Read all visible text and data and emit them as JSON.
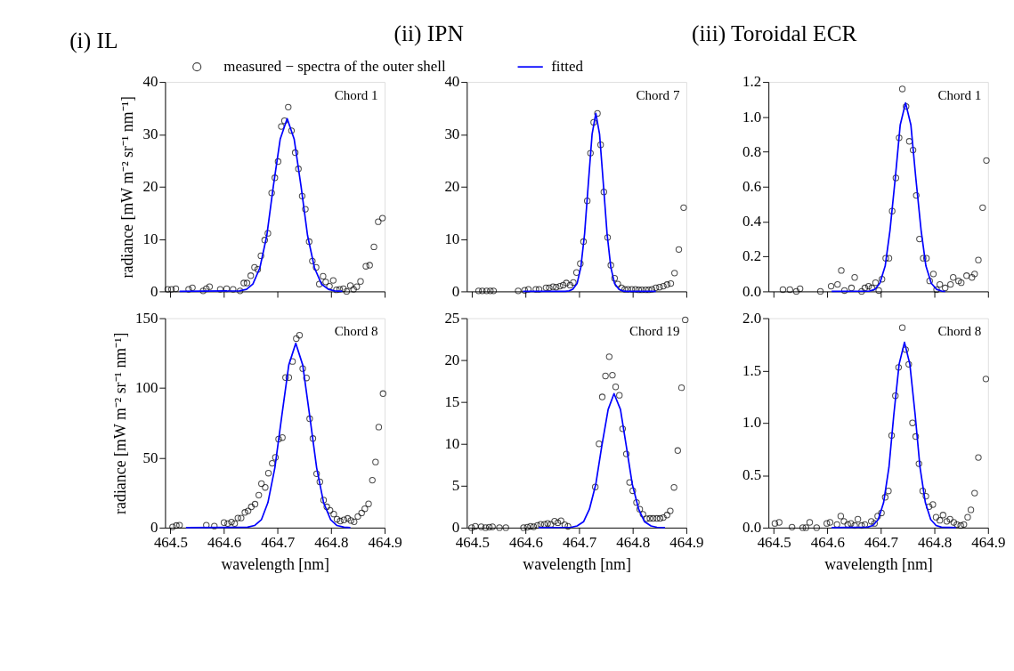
{
  "chart_data": [
    {
      "type": "scatter",
      "title": "(i) IL",
      "ylabel": "radiance [mW m⁻² sr⁻¹ nm⁻¹]",
      "annotations": [
        "Chord 1"
      ],
      "xlim": [
        464.49,
        464.9
      ],
      "xticks": [
        464.5,
        464.6,
        464.7,
        464.8,
        464.9
      ],
      "ylim": [
        0,
        40
      ],
      "yticks": [
        0,
        10,
        20,
        30,
        40
      ],
      "tick_labels": "y",
      "legend": "top",
      "grid": false,
      "series": [
        {
          "name": "measured − spectra of the outer shell",
          "marker": "circle",
          "color": "#000000",
          "x": [
            464.495,
            464.502,
            464.51,
            464.534,
            464.541,
            464.561,
            464.567,
            464.573,
            464.593,
            464.605,
            464.617,
            464.63,
            464.637,
            464.643,
            464.65,
            464.657,
            464.663,
            464.669,
            464.676,
            464.682,
            464.689,
            464.695,
            464.701,
            464.707,
            464.713,
            464.72,
            464.726,
            464.733,
            464.739,
            464.746,
            464.752,
            464.759,
            464.765,
            464.772,
            464.778,
            464.785,
            464.79,
            464.797,
            464.804,
            464.81,
            464.816,
            464.823,
            464.829,
            464.836,
            464.842,
            464.848,
            464.855,
            464.865,
            464.872,
            464.88,
            464.888,
            464.896
          ],
          "values": [
            0.4,
            0.4,
            0.5,
            0.4,
            0.7,
            0.1,
            0.5,
            0.9,
            0.4,
            0.5,
            0.4,
            0.1,
            1.6,
            1.6,
            3.0,
            4.6,
            4.2,
            6.8,
            9.8,
            11.1,
            18.8,
            21.7,
            24.8,
            31.5,
            32.6,
            35.2,
            30.7,
            26.5,
            23.4,
            18.2,
            15.7,
            9.5,
            5.8,
            4.6,
            1.4,
            2.9,
            1.8,
            1.0,
            2.1,
            0.3,
            0.4,
            0.5,
            0.0,
            1.1,
            0.4,
            0.9,
            1.9,
            4.8,
            5.0,
            8.5,
            13.3,
            14.0
          ]
        },
        {
          "name": "fitted",
          "type": "line",
          "marker": "none",
          "color": "#0000ff",
          "x": [
            464.517,
            464.629,
            464.642,
            464.654,
            464.667,
            464.68,
            464.692,
            464.705,
            464.718,
            464.731,
            464.744,
            464.756,
            464.769,
            464.782,
            464.795,
            464.807,
            464.821
          ],
          "values": [
            0,
            0.1,
            0.4,
            1.4,
            4.5,
            10.7,
            20.0,
            29.1,
            33,
            29.1,
            20.0,
            10.7,
            4.5,
            1.4,
            0.4,
            0.1,
            0
          ]
        }
      ]
    },
    {
      "type": "scatter",
      "title": "(ii) IPN",
      "annotations": [
        "Chord 7"
      ],
      "xlim": [
        464.49,
        464.9
      ],
      "xticks": [
        464.5,
        464.6,
        464.7,
        464.8,
        464.9
      ],
      "ylim": [
        0,
        40
      ],
      "yticks": [
        0,
        10,
        20,
        30,
        40
      ],
      "tick_labels": "y",
      "grid": false,
      "series": [
        {
          "marker": "circle",
          "color": "#000000",
          "x": [
            464.512,
            464.519,
            464.527,
            464.534,
            464.54,
            464.586,
            464.598,
            464.605,
            464.619,
            464.625,
            464.638,
            464.644,
            464.651,
            464.657,
            464.664,
            464.67,
            464.676,
            464.683,
            464.689,
            464.695,
            464.702,
            464.708,
            464.715,
            464.721,
            464.727,
            464.734,
            464.74,
            464.746,
            464.753,
            464.759,
            464.766,
            464.772,
            464.779,
            464.785,
            464.791,
            464.798,
            464.805,
            464.811,
            464.817,
            464.824,
            464.83,
            464.836,
            464.843,
            464.85,
            464.857,
            464.864,
            464.871,
            464.878,
            464.886,
            464.895
          ],
          "values": [
            0.1,
            0.1,
            0.1,
            0.1,
            0.1,
            0.1,
            0.2,
            0.4,
            0.4,
            0.4,
            0.7,
            0.7,
            0.9,
            0.8,
            1.0,
            1.2,
            1.6,
            1.2,
            1.7,
            3.6,
            5.3,
            9.5,
            17.3,
            26.4,
            32.3,
            34.0,
            28.0,
            19.0,
            10.3,
            5.0,
            2.5,
            1.4,
            0.7,
            0.4,
            0.4,
            0.4,
            0.4,
            0.3,
            0.3,
            0.3,
            0.3,
            0.4,
            0.7,
            0.8,
            1.0,
            1.3,
            1.5,
            3.5,
            8.0,
            16.0
          ]
        },
        {
          "type": "line",
          "marker": "none",
          "color": "#0000ff",
          "x": [
            464.595,
            464.674,
            464.681,
            464.688,
            464.696,
            464.703,
            464.71,
            464.717,
            464.724,
            464.731,
            464.738,
            464.745,
            464.752,
            464.759,
            464.766,
            464.774,
            464.781,
            464.788,
            464.843
          ],
          "values": [
            0,
            0.0,
            0.1,
            0.4,
            1.5,
            4.6,
            11.0,
            20.6,
            30.0,
            34,
            30.0,
            20.6,
            11.0,
            4.6,
            1.5,
            0.4,
            0.1,
            0.0,
            0
          ]
        }
      ]
    },
    {
      "type": "scatter",
      "title": "(iii) Toroidal ECR",
      "annotations": [
        "Chord 1"
      ],
      "xlim": [
        464.49,
        464.9
      ],
      "xticks": [
        464.5,
        464.6,
        464.7,
        464.8,
        464.9
      ],
      "ylim": [
        0,
        1.2
      ],
      "yticks": [
        {
          "value": 0,
          "label": "0.0"
        },
        0.2,
        0.4,
        0.6,
        0.8,
        {
          "value": 1,
          "label": "1.0"
        },
        1.2
      ],
      "tick_labels": "y",
      "grid": false,
      "series": [
        {
          "marker": "circle",
          "color": "#000000",
          "x": [
            464.517,
            464.53,
            464.542,
            464.549,
            464.587,
            464.607,
            464.619,
            464.626,
            464.632,
            464.645,
            464.651,
            464.664,
            464.67,
            464.677,
            464.683,
            464.69,
            464.696,
            464.702,
            464.709,
            464.715,
            464.721,
            464.728,
            464.734,
            464.74,
            464.747,
            464.753,
            464.76,
            464.766,
            464.772,
            464.779,
            464.785,
            464.791,
            464.798,
            464.804,
            464.81,
            464.82,
            464.83,
            464.835,
            464.845,
            464.85,
            464.86,
            464.87,
            464.875,
            464.882,
            464.89,
            464.897
          ],
          "values": [
            0.01,
            0.01,
            0.0,
            0.015,
            0.0,
            0.03,
            0.04,
            0.12,
            0.005,
            0.02,
            0.08,
            0.0,
            0.02,
            0.03,
            0.02,
            0.05,
            0.005,
            0.07,
            0.19,
            0.19,
            0.46,
            0.65,
            0.88,
            1.16,
            1.06,
            0.86,
            0.81,
            0.55,
            0.3,
            0.19,
            0.19,
            0.06,
            0.1,
            0.01,
            0.04,
            0.02,
            0.04,
            0.08,
            0.06,
            0.05,
            0.09,
            0.08,
            0.1,
            0.18,
            0.48,
            0.75
          ]
        },
        {
          "type": "line",
          "marker": "none",
          "color": "#0000ff",
          "x": [
            464.608,
            464.679,
            464.689,
            464.698,
            464.708,
            464.717,
            464.727,
            464.736,
            464.746,
            464.756,
            464.765,
            464.775,
            464.784,
            464.794,
            464.804,
            464.813,
            464.82
          ],
          "values": [
            0,
            0.002,
            0.012,
            0.047,
            0.146,
            0.351,
            0.655,
            0.953,
            1.08,
            0.953,
            0.655,
            0.351,
            0.146,
            0.047,
            0.012,
            0.002,
            0
          ]
        }
      ]
    },
    {
      "type": "scatter",
      "xlabel": "wavelength [nm]",
      "ylabel": "radiance [mW m⁻² sr⁻¹ nm⁻¹]",
      "annotations": [
        "Chord 8"
      ],
      "xlim": [
        464.49,
        464.9
      ],
      "xticks": [
        464.5,
        464.6,
        464.7,
        464.8,
        464.9
      ],
      "ylim": [
        0,
        150
      ],
      "yticks": [
        0,
        50,
        100,
        150
      ],
      "grid": false,
      "series": [
        {
          "marker": "circle",
          "color": "#000000",
          "x": [
            464.504,
            464.511,
            464.517,
            464.567,
            464.582,
            464.6,
            464.607,
            464.614,
            464.62,
            464.626,
            464.632,
            464.639,
            464.645,
            464.651,
            464.658,
            464.665,
            464.67,
            464.677,
            464.683,
            464.69,
            464.696,
            464.702,
            464.709,
            464.715,
            464.721,
            464.728,
            464.735,
            464.741,
            464.747,
            464.754,
            464.76,
            464.766,
            464.773,
            464.779,
            464.786,
            464.792,
            464.798,
            464.805,
            464.811,
            464.817,
            464.824,
            464.831,
            464.837,
            464.843,
            464.85,
            464.857,
            464.863,
            464.87,
            464.877,
            464.883,
            464.889,
            464.897
          ],
          "values": [
            0.5,
            1.5,
            1.8,
            1.8,
            1.1,
            3.6,
            2.9,
            4.0,
            2.9,
            6.9,
            6.9,
            10.9,
            12.0,
            14.9,
            16.8,
            23.3,
            31.5,
            28.8,
            39.0,
            46.1,
            50.3,
            63.4,
            64.5,
            107.5,
            107.5,
            119.0,
            135.4,
            137.8,
            113.9,
            107.2,
            78.0,
            63.8,
            38.6,
            32.8,
            19.7,
            14.9,
            12.4,
            9.7,
            6.0,
            4.7,
            5.5,
            6.6,
            5.1,
            4.2,
            8.0,
            10.5,
            13.5,
            17,
            34,
            47,
            72,
            96
          ]
        },
        {
          "type": "line",
          "marker": "none",
          "color": "#0000ff",
          "x": [
            464.529,
            464.644,
            464.657,
            464.67,
            464.682,
            464.695,
            464.708,
            464.721,
            464.734,
            464.747,
            464.76,
            464.773,
            464.786,
            464.799,
            464.811,
            464.824,
            464.836
          ],
          "values": [
            0,
            0.3,
            1.5,
            5.8,
            17.9,
            42.9,
            80.1,
            116.5,
            132,
            116.5,
            80.1,
            42.9,
            17.9,
            5.8,
            1.5,
            0.3,
            0
          ]
        }
      ]
    },
    {
      "type": "scatter",
      "xlabel": "wavelength [nm]",
      "annotations": [
        "Chord 19"
      ],
      "xlim": [
        464.49,
        464.9
      ],
      "xticks": [
        464.5,
        464.6,
        464.7,
        464.8,
        464.9
      ],
      "ylim": [
        0,
        25
      ],
      "yticks": [
        0,
        5,
        10,
        15,
        20,
        25
      ],
      "grid": false,
      "series": [
        {
          "marker": "circle",
          "color": "#000000",
          "x": [
            464.499,
            464.506,
            464.517,
            464.525,
            464.532,
            464.538,
            464.551,
            464.563,
            464.596,
            464.603,
            464.609,
            464.615,
            464.622,
            464.628,
            464.635,
            464.641,
            464.647,
            464.654,
            464.66,
            464.666,
            464.673,
            464.679,
            464.73,
            464.737,
            464.743,
            464.749,
            464.756,
            464.762,
            464.768,
            464.775,
            464.781,
            464.788,
            464.794,
            464.8,
            464.807,
            464.813,
            464.819,
            464.826,
            464.832,
            464.838,
            464.845,
            464.851,
            464.857,
            464.864,
            464.87,
            464.877,
            464.884,
            464.891,
            464.898
          ],
          "values": [
            0,
            0.15,
            0.1,
            0,
            0.06,
            0.1,
            0,
            0,
            0,
            0.06,
            0.15,
            0.1,
            0.27,
            0.4,
            0.4,
            0.5,
            0.4,
            0.76,
            0.58,
            0.82,
            0.34,
            0.15,
            4.85,
            10.0,
            15.6,
            18.1,
            20.4,
            18.2,
            16.8,
            15.8,
            11.8,
            8.8,
            5.4,
            4.4,
            3.0,
            2.2,
            1.6,
            1.07,
            1.1,
            1.1,
            1.1,
            1.1,
            1.2,
            1.5,
            2.0,
            4.8,
            9.2,
            16.7,
            24.8
          ]
        },
        {
          "type": "line",
          "marker": "none",
          "color": "#0000ff",
          "x": [
            464.624,
            464.685,
            464.696,
            464.708,
            464.719,
            464.731,
            464.742,
            464.754,
            464.765,
            464.777,
            464.788,
            464.799,
            464.811,
            464.822,
            464.834,
            464.845,
            464.86
          ],
          "values": [
            0,
            0.04,
            0.2,
            0.7,
            2.2,
            5.2,
            9.7,
            14.1,
            16,
            14.1,
            9.7,
            5.2,
            2.2,
            0.7,
            0.2,
            0.04,
            0
          ]
        }
      ]
    },
    {
      "type": "scatter",
      "xlabel": "wavelength [nm]",
      "annotations": [
        "Chord 8"
      ],
      "xlim": [
        464.49,
        464.9
      ],
      "xticks": [
        464.5,
        464.6,
        464.7,
        464.8,
        464.9
      ],
      "ylim": [
        0,
        2
      ],
      "yticks": [
        {
          "value": 0,
          "label": "0.0"
        },
        0.5,
        {
          "value": 1,
          "label": "1.0"
        },
        1.5,
        {
          "value": 2,
          "label": "2.0"
        }
      ],
      "grid": false,
      "series": [
        {
          "marker": "circle",
          "color": "#000000",
          "x": [
            464.502,
            464.51,
            464.534,
            464.554,
            464.56,
            464.567,
            464.58,
            464.599,
            464.605,
            464.618,
            464.625,
            464.631,
            464.638,
            464.644,
            464.651,
            464.657,
            464.664,
            464.67,
            464.682,
            464.688,
            464.694,
            464.701,
            464.708,
            464.714,
            464.72,
            464.727,
            464.733,
            464.74,
            464.746,
            464.752,
            464.759,
            464.765,
            464.771,
            464.778,
            464.784,
            464.79,
            464.797,
            464.803,
            464.81,
            464.816,
            464.823,
            464.829,
            464.836,
            464.842,
            464.849,
            464.855,
            464.862,
            464.868,
            464.875,
            464.882,
            464.896
          ],
          "values": [
            0.04,
            0.05,
            0.005,
            0,
            0,
            0.05,
            0,
            0.04,
            0.05,
            0.03,
            0.11,
            0.06,
            0.03,
            0.04,
            0.02,
            0.08,
            0.02,
            0.03,
            0.06,
            0.04,
            0.11,
            0.14,
            0.29,
            0.35,
            0.88,
            1.26,
            1.53,
            1.91,
            1.7,
            1.56,
            1.0,
            0.87,
            0.61,
            0.35,
            0.3,
            0.2,
            0.22,
            0.1,
            0.07,
            0.12,
            0.06,
            0.08,
            0.05,
            0.03,
            0.02,
            0.03,
            0.1,
            0.17,
            0.33,
            0.67,
            1.42
          ]
        },
        {
          "type": "line",
          "marker": "none",
          "color": "#0000ff",
          "x": [
            464.608,
            464.675,
            464.685,
            464.695,
            464.705,
            464.715,
            464.724,
            464.734,
            464.744,
            464.754,
            464.764,
            464.773,
            464.783,
            464.793,
            464.803,
            464.813,
            464.84
          ],
          "values": [
            0,
            0.004,
            0.02,
            0.078,
            0.239,
            0.575,
            1.074,
            1.562,
            1.77,
            1.562,
            1.074,
            0.575,
            0.239,
            0.078,
            0.02,
            0.004,
            0
          ]
        }
      ]
    }
  ]
}
